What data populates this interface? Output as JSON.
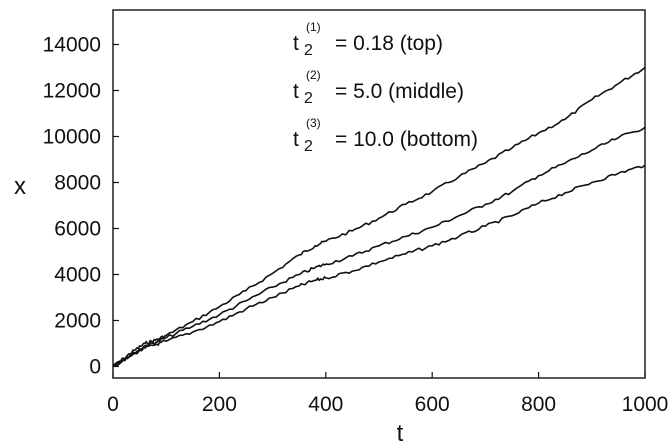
{
  "chart_data": {
    "type": "line",
    "xlabel": "t",
    "ylabel": "x",
    "xlim": [
      0,
      1000
    ],
    "ylim": [
      -500,
      15500
    ],
    "xticks": [
      0,
      200,
      400,
      600,
      800,
      1000
    ],
    "yticks": [
      0,
      2000,
      4000,
      6000,
      8000,
      10000,
      12000,
      14000
    ],
    "grid": false,
    "legend": "none",
    "line_color": "#111111",
    "annotations": [
      {
        "symbol": "t",
        "sub": "2",
        "sup": "(1)",
        "text": "= 0.18 (top)"
      },
      {
        "symbol": "t",
        "sub": "2",
        "sup": "(2)",
        "text": "= 5.0 (middle)"
      },
      {
        "symbol": "t",
        "sub": "2",
        "sup": "(3)",
        "text": "= 10.0 (bottom)"
      }
    ],
    "series": [
      {
        "x": [
          0,
          20,
          40,
          60,
          80,
          100,
          150,
          200,
          250,
          300,
          350,
          380,
          400,
          450,
          500,
          550,
          600,
          650,
          700,
          750,
          800,
          850,
          900,
          950,
          1000
        ],
        "y": [
          0,
          350,
          700,
          1000,
          1150,
          1350,
          1950,
          2600,
          3300,
          4050,
          4850,
          5250,
          5450,
          5900,
          6450,
          7050,
          7600,
          8250,
          8850,
          9500,
          10150,
          10750,
          11600,
          12300,
          13000
        ]
      },
      {
        "x": [
          0,
          20,
          40,
          60,
          80,
          100,
          150,
          200,
          250,
          300,
          350,
          380,
          400,
          450,
          500,
          550,
          600,
          650,
          700,
          750,
          800,
          850,
          900,
          950,
          1000
        ],
        "y": [
          0,
          300,
          600,
          900,
          1050,
          1250,
          1750,
          2250,
          2850,
          3450,
          4000,
          4300,
          4450,
          4800,
          5250,
          5650,
          6050,
          6550,
          7050,
          7600,
          8300,
          8850,
          9400,
          9950,
          10400
        ]
      },
      {
        "x": [
          0,
          20,
          40,
          60,
          80,
          100,
          150,
          200,
          250,
          300,
          350,
          380,
          400,
          450,
          500,
          550,
          600,
          650,
          700,
          750,
          800,
          850,
          900,
          950,
          1000
        ],
        "y": [
          0,
          280,
          550,
          800,
          950,
          1100,
          1500,
          1950,
          2500,
          3000,
          3500,
          3750,
          3850,
          4150,
          4550,
          4900,
          5250,
          5650,
          6100,
          6550,
          7100,
          7550,
          8000,
          8400,
          8750
        ]
      }
    ]
  }
}
